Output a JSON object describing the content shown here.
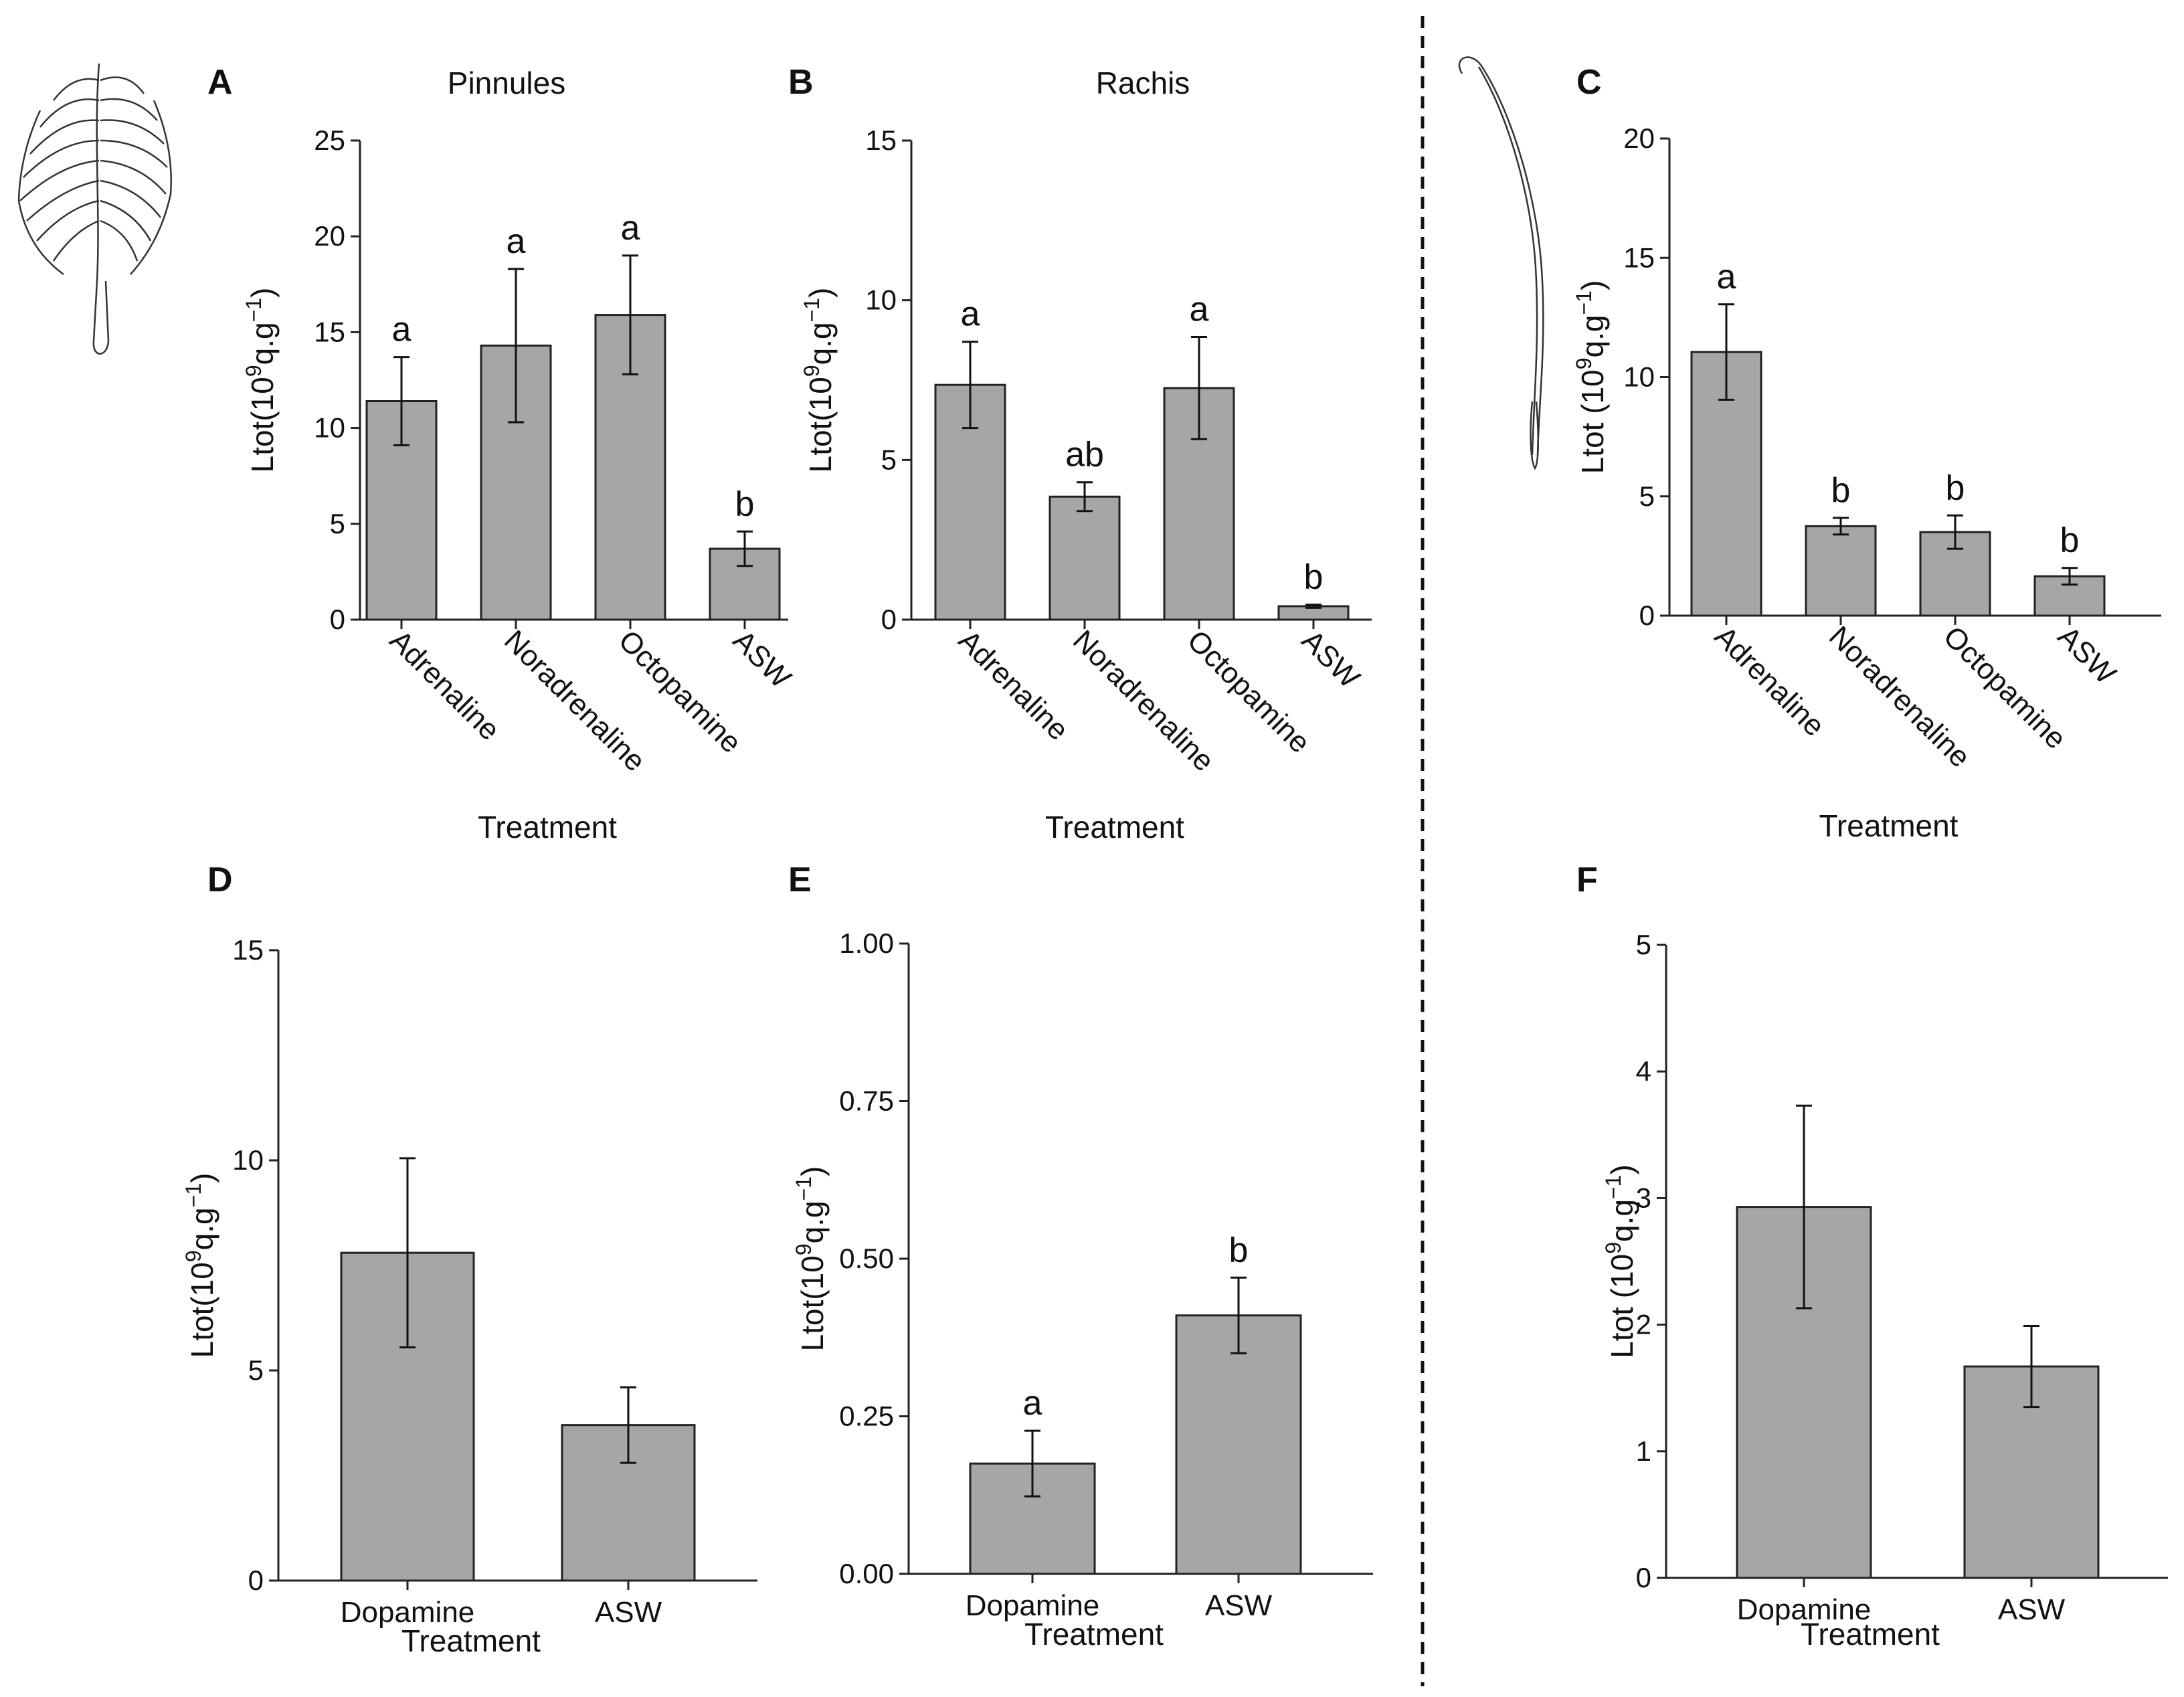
{
  "chart_data": [
    {
      "panel": "A",
      "type": "bar",
      "title": "Pinnules",
      "categories": [
        "Adrenaline",
        "Noradrenaline",
        "Octopamine",
        "ASW"
      ],
      "values": [
        11.4,
        14.3,
        15.9,
        3.7
      ],
      "errors": [
        2.3,
        4.0,
        3.1,
        0.9
      ],
      "significance": [
        "a",
        "a",
        "a",
        "b"
      ],
      "xlabel": "Treatment",
      "ylabel": {
        "base": "Ltot(10",
        "sup": "9",
        "mid": "q.g",
        "sup2": "−1",
        "end": ")"
      },
      "ylim": [
        0,
        25
      ],
      "yticks": [
        "0",
        "5",
        "10",
        "15",
        "20",
        "25"
      ],
      "rotated_labels": true
    },
    {
      "panel": "B",
      "type": "bar",
      "title": "Rachis",
      "categories": [
        "Adrenaline",
        "Noradrenaline",
        "Octopamine",
        "ASW"
      ],
      "values": [
        7.35,
        3.85,
        7.25,
        0.42
      ],
      "errors": [
        1.35,
        0.45,
        1.6,
        0.05
      ],
      "significance": [
        "a",
        "ab",
        "a",
        "b"
      ],
      "xlabel": "Treatment",
      "ylabel": {
        "base": "Ltot(10",
        "sup": "9",
        "mid": "q.g",
        "sup2": "−1",
        "end": ")"
      },
      "ylim": [
        0,
        15
      ],
      "yticks": [
        "0",
        "5",
        "10",
        "15"
      ],
      "rotated_labels": true
    },
    {
      "panel": "C",
      "type": "bar",
      "title": "",
      "categories": [
        "Adrenaline",
        "Noradrenaline",
        "Octopamine",
        "ASW"
      ],
      "values": [
        11.05,
        3.75,
        3.5,
        1.65
      ],
      "errors": [
        2.0,
        0.35,
        0.7,
        0.35
      ],
      "significance": [
        "a",
        "b",
        "b",
        "b"
      ],
      "xlabel": "Treatment",
      "ylabel": {
        "base": "Ltot (10",
        "sup": "9",
        "mid": "q.g",
        "sup2": "−1",
        "end": ")"
      },
      "ylim": [
        0,
        20
      ],
      "yticks": [
        "0",
        "5",
        "10",
        "15",
        "20"
      ],
      "rotated_labels": true
    },
    {
      "panel": "D",
      "type": "bar",
      "title": "",
      "categories": [
        "Dopamine",
        "ASW"
      ],
      "values": [
        7.8,
        3.7
      ],
      "errors": [
        2.25,
        0.9
      ],
      "significance": [
        "",
        ""
      ],
      "xlabel": "Treatment",
      "ylabel": {
        "base": "Ltot(10",
        "sup": "9",
        "mid": "q.g",
        "sup2": "−1",
        "end": ")"
      },
      "ylim": [
        0,
        15
      ],
      "yticks": [
        "0",
        "5",
        "10",
        "15"
      ],
      "rotated_labels": false
    },
    {
      "panel": "E",
      "type": "bar",
      "title": "",
      "categories": [
        "Dopamine",
        "ASW"
      ],
      "values": [
        0.175,
        0.41
      ],
      "errors": [
        0.052,
        0.06
      ],
      "significance": [
        "a",
        "b"
      ],
      "xlabel": "Treatment",
      "ylabel": {
        "base": "Ltot(10",
        "sup": "9",
        "mid": "q.g",
        "sup2": "−1",
        "end": ")"
      },
      "ylim": [
        0,
        1
      ],
      "yticks": [
        "0.00",
        "0.25",
        "0.50",
        "0.75",
        "1.00"
      ],
      "rotated_labels": false
    },
    {
      "panel": "F",
      "type": "bar",
      "title": "",
      "categories": [
        "Dopamine",
        "ASW"
      ],
      "values": [
        2.93,
        1.67
      ],
      "errors": [
        0.8,
        0.32
      ],
      "significance": [
        "",
        ""
      ],
      "xlabel": "Treatment",
      "ylabel": {
        "base": "Ltot (10",
        "sup": "9",
        "mid": "q.g",
        "sup2": "−1",
        "end": ")"
      },
      "ylim": [
        0,
        5
      ],
      "yticks": [
        "0",
        "1",
        "2",
        "3",
        "4",
        "5"
      ],
      "rotated_labels": false
    }
  ]
}
